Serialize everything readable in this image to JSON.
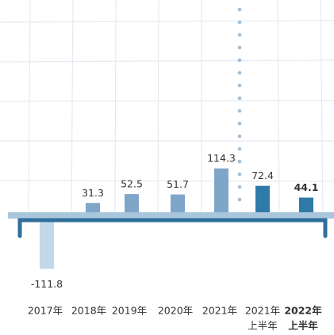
{
  "chart_data": {
    "type": "bar",
    "categories": [
      [
        "2017年"
      ],
      [
        "2018年"
      ],
      [
        "2019年"
      ],
      [
        "2020年"
      ],
      [
        "2021年"
      ],
      [
        "2021年",
        "上半年"
      ],
      [
        "2022年",
        "上半年"
      ]
    ],
    "values": [
      -111.8,
      31.3,
      52.5,
      51.7,
      114.3,
      72.4,
      44.1
    ],
    "colors": [
      "#c3d8e8",
      "#7fa6c8",
      "#7fa6c8",
      "#7fa6c8",
      "#7fa6c8",
      "#2f7aa6",
      "#2f7aa6"
    ],
    "bold": [
      false,
      false,
      false,
      false,
      false,
      false,
      true
    ],
    "ylim": [
      -130,
      500
    ]
  }
}
